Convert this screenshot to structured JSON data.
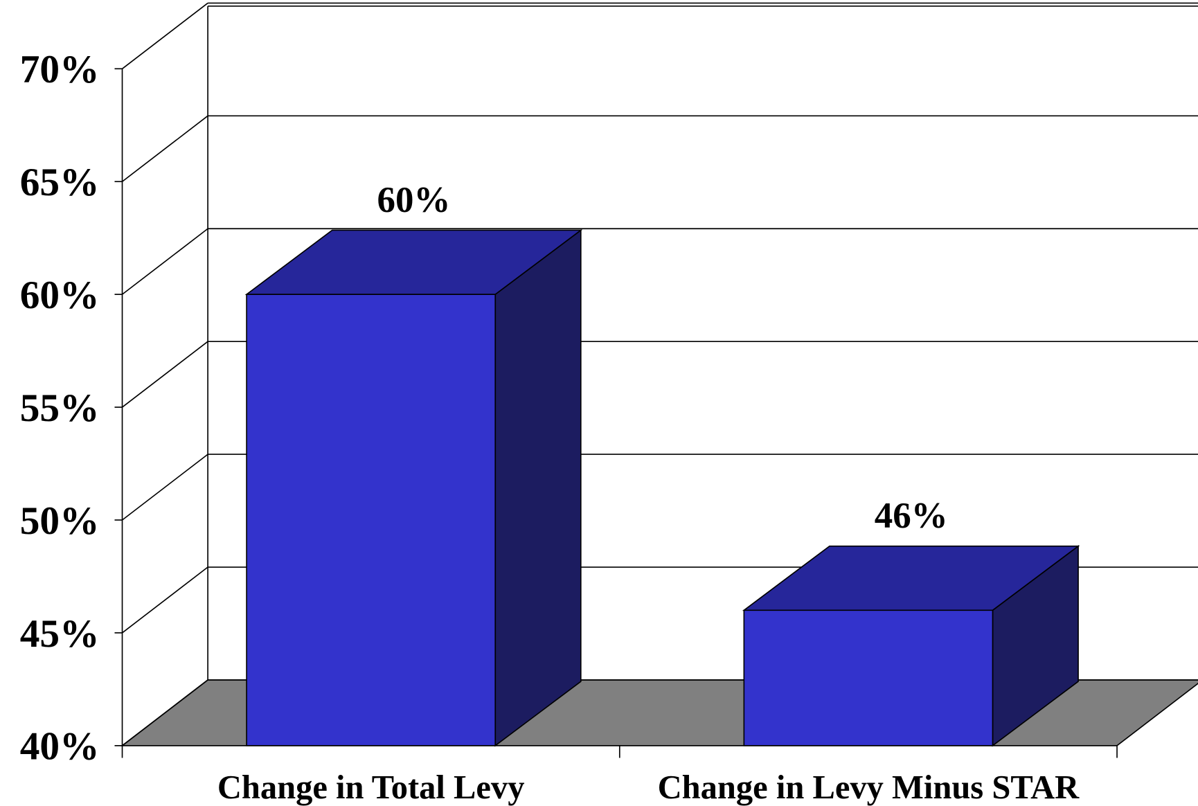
{
  "chart_data": {
    "type": "bar3d",
    "categories": [
      "Change in Total Levy",
      "Change in Levy Minus STAR"
    ],
    "values": [
      60,
      46
    ],
    "value_labels": [
      "60%",
      "46%"
    ],
    "ylim": [
      40,
      70
    ],
    "yticks": [
      {
        "value": 40,
        "label": "40%"
      },
      {
        "value": 45,
        "label": "45%"
      },
      {
        "value": 50,
        "label": "50%"
      },
      {
        "value": 55,
        "label": "55%"
      },
      {
        "value": 60,
        "label": "60%"
      },
      {
        "value": 65,
        "label": "65%"
      },
      {
        "value": 70,
        "label": "70%"
      }
    ],
    "color": "#3333cc",
    "grid": true
  }
}
